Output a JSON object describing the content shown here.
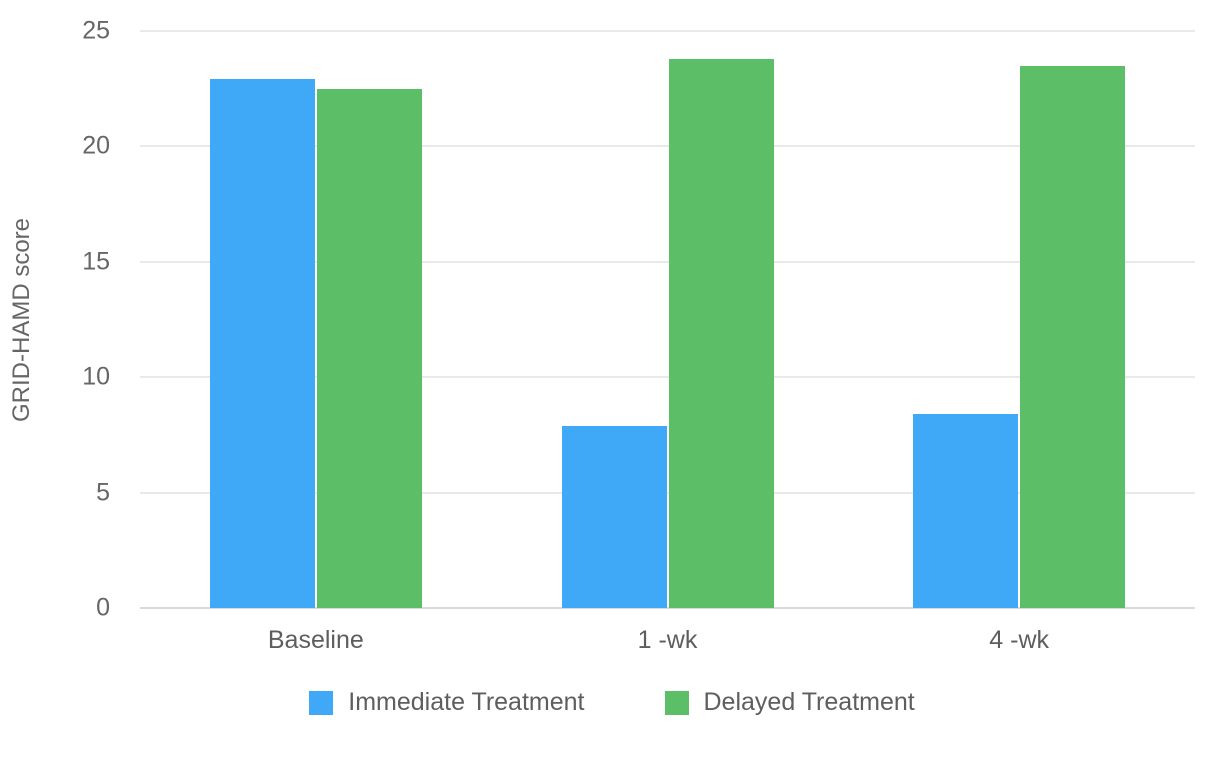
{
  "chart_data": {
    "type": "bar",
    "categories": [
      "Baseline",
      "1 -wk",
      "4 -wk"
    ],
    "series": [
      {
        "name": "Immediate Treatment",
        "color": "#3FA9F8",
        "values": [
          22.9,
          7.9,
          8.4
        ]
      },
      {
        "name": "Delayed Treatment",
        "color": "#5CBE66",
        "values": [
          22.5,
          23.8,
          23.5
        ]
      }
    ],
    "title": "",
    "xlabel": "",
    "ylabel": "GRID-HAMD score",
    "ylim": [
      0,
      25
    ],
    "yticks": [
      0,
      5,
      10,
      15,
      20,
      25
    ],
    "grid": true,
    "legend_position": "bottom"
  },
  "colors": {
    "grid": "#e9e9e9",
    "axis_line": "#d9d9d9",
    "tick_text": "#666666",
    "label_text": "#5e5e5e",
    "background": "#ffffff"
  }
}
